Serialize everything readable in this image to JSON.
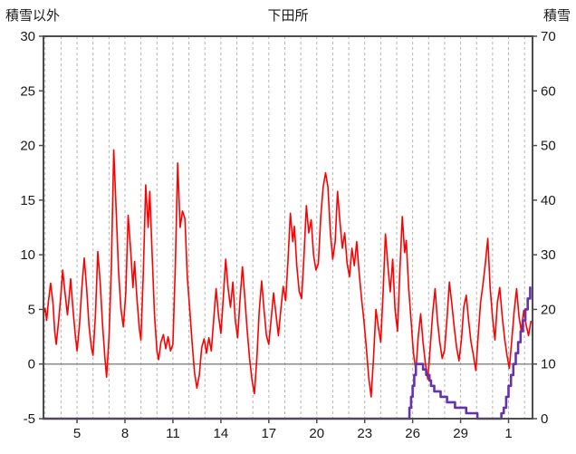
{
  "header": {
    "left_axis_title": "積雪以外",
    "title": "下田所",
    "right_axis_title": "積雪"
  },
  "chart_data": {
    "type": "line",
    "title": "下田所",
    "left_axis_label": "積雪以外",
    "right_axis_label": "積雪",
    "x_domain": [
      2.9,
      33.5
    ],
    "x_ticks": [
      {
        "day": 5,
        "label": "5"
      },
      {
        "day": 8,
        "label": "8"
      },
      {
        "day": 11,
        "label": "11"
      },
      {
        "day": 14,
        "label": "14"
      },
      {
        "day": 17,
        "label": "17"
      },
      {
        "day": 20,
        "label": "20"
      },
      {
        "day": 23,
        "label": "23"
      },
      {
        "day": 26,
        "label": "26"
      },
      {
        "day": 29,
        "label": "29"
      },
      {
        "day": 32,
        "label": "1"
      }
    ],
    "grid": {
      "vertical_step": 1,
      "dashed": true,
      "horizontal": false
    },
    "y_left": {
      "min": -5,
      "max": 30,
      "ticks": [
        30,
        25,
        20,
        15,
        10,
        5,
        0,
        -5
      ]
    },
    "y_right": {
      "min": 0,
      "max": 70,
      "ticks": [
        70,
        60,
        50,
        40,
        30,
        20,
        10,
        0
      ]
    },
    "zero_line_left_value": 0,
    "colors": {
      "temperature": "#ff0000",
      "snow": "#6633aa",
      "grid": "#b3b3b3",
      "frame": "#4d4d4d",
      "zero_line": "#8c8c8c",
      "text": "#1a1a1a"
    },
    "series": [
      {
        "name": "積雪以外",
        "axis": "left",
        "color": "#ff0000",
        "width": 1.6,
        "step": false,
        "points": [
          [
            2.9,
            4.6
          ],
          [
            3.0,
            5.1
          ],
          [
            3.1,
            4.0
          ],
          [
            3.2,
            5.6
          ],
          [
            3.35,
            7.4
          ],
          [
            3.5,
            5.5
          ],
          [
            3.6,
            3.0
          ],
          [
            3.7,
            1.8
          ],
          [
            3.85,
            4.0
          ],
          [
            4.0,
            6.5
          ],
          [
            4.1,
            8.6
          ],
          [
            4.25,
            6.5
          ],
          [
            4.4,
            4.5
          ],
          [
            4.5,
            6.0
          ],
          [
            4.6,
            7.8
          ],
          [
            4.75,
            5.0
          ],
          [
            4.9,
            2.5
          ],
          [
            5.0,
            1.2
          ],
          [
            5.15,
            3.5
          ],
          [
            5.3,
            7.0
          ],
          [
            5.45,
            9.7
          ],
          [
            5.6,
            7.0
          ],
          [
            5.75,
            3.5
          ],
          [
            5.9,
            1.5
          ],
          [
            6.0,
            0.8
          ],
          [
            6.15,
            4.5
          ],
          [
            6.3,
            10.3
          ],
          [
            6.45,
            7.5
          ],
          [
            6.6,
            3.5
          ],
          [
            6.75,
            0.5
          ],
          [
            6.85,
            -1.2
          ],
          [
            7.0,
            2.5
          ],
          [
            7.15,
            9.0
          ],
          [
            7.3,
            19.6
          ],
          [
            7.45,
            14.0
          ],
          [
            7.6,
            8.5
          ],
          [
            7.75,
            5.0
          ],
          [
            7.9,
            3.4
          ],
          [
            8.05,
            6.5
          ],
          [
            8.2,
            13.6
          ],
          [
            8.35,
            10.5
          ],
          [
            8.5,
            7.0
          ],
          [
            8.6,
            9.4
          ],
          [
            8.75,
            6.0
          ],
          [
            8.9,
            3.2
          ],
          [
            9.0,
            2.2
          ],
          [
            9.15,
            8.5
          ],
          [
            9.3,
            16.4
          ],
          [
            9.45,
            12.5
          ],
          [
            9.55,
            15.8
          ],
          [
            9.7,
            10.0
          ],
          [
            9.85,
            4.5
          ],
          [
            10.0,
            1.2
          ],
          [
            10.1,
            0.4
          ],
          [
            10.25,
            2.0
          ],
          [
            10.4,
            2.7
          ],
          [
            10.55,
            1.4
          ],
          [
            10.7,
            2.5
          ],
          [
            10.85,
            1.2
          ],
          [
            11.0,
            1.8
          ],
          [
            11.15,
            9.0
          ],
          [
            11.3,
            18.4
          ],
          [
            11.45,
            12.5
          ],
          [
            11.6,
            14.0
          ],
          [
            11.75,
            13.3
          ],
          [
            11.9,
            8.0
          ],
          [
            12.05,
            5.0
          ],
          [
            12.2,
            2.0
          ],
          [
            12.35,
            -0.8
          ],
          [
            12.5,
            -2.2
          ],
          [
            12.65,
            -1.0
          ],
          [
            12.8,
            1.5
          ],
          [
            12.95,
            2.3
          ],
          [
            13.1,
            1.0
          ],
          [
            13.25,
            2.4
          ],
          [
            13.4,
            1.2
          ],
          [
            13.55,
            4.0
          ],
          [
            13.7,
            6.9
          ],
          [
            13.85,
            4.5
          ],
          [
            14.0,
            2.8
          ],
          [
            14.15,
            6.0
          ],
          [
            14.3,
            9.6
          ],
          [
            14.45,
            7.0
          ],
          [
            14.6,
            5.2
          ],
          [
            14.75,
            7.5
          ],
          [
            14.9,
            4.0
          ],
          [
            15.05,
            2.4
          ],
          [
            15.2,
            6.0
          ],
          [
            15.35,
            8.9
          ],
          [
            15.5,
            6.0
          ],
          [
            15.65,
            3.0
          ],
          [
            15.8,
            0.5
          ],
          [
            15.95,
            -1.5
          ],
          [
            16.1,
            -2.7
          ],
          [
            16.25,
            0.5
          ],
          [
            16.4,
            4.8
          ],
          [
            16.55,
            7.6
          ],
          [
            16.7,
            5.0
          ],
          [
            16.85,
            2.6
          ],
          [
            17.0,
            1.8
          ],
          [
            17.15,
            4.2
          ],
          [
            17.3,
            6.5
          ],
          [
            17.45,
            4.5
          ],
          [
            17.6,
            2.6
          ],
          [
            17.75,
            5.0
          ],
          [
            17.9,
            7.1
          ],
          [
            18.05,
            5.8
          ],
          [
            18.2,
            9.5
          ],
          [
            18.35,
            13.8
          ],
          [
            18.5,
            11.2
          ],
          [
            18.6,
            12.6
          ],
          [
            18.75,
            9.0
          ],
          [
            18.9,
            6.6
          ],
          [
            19.05,
            6.0
          ],
          [
            19.2,
            9.8
          ],
          [
            19.35,
            14.5
          ],
          [
            19.5,
            12.0
          ],
          [
            19.65,
            13.2
          ],
          [
            19.8,
            10.0
          ],
          [
            19.95,
            8.6
          ],
          [
            20.1,
            9.2
          ],
          [
            20.25,
            13.5
          ],
          [
            20.4,
            16.2
          ],
          [
            20.55,
            17.5
          ],
          [
            20.7,
            16.2
          ],
          [
            20.85,
            12.0
          ],
          [
            21.0,
            9.6
          ],
          [
            21.15,
            11.2
          ],
          [
            21.3,
            15.8
          ],
          [
            21.45,
            13.0
          ],
          [
            21.6,
            10.6
          ],
          [
            21.75,
            12.0
          ],
          [
            21.9,
            9.2
          ],
          [
            22.05,
            8.0
          ],
          [
            22.2,
            10.6
          ],
          [
            22.35,
            9.0
          ],
          [
            22.5,
            11.2
          ],
          [
            22.65,
            8.4
          ],
          [
            22.8,
            6.0
          ],
          [
            22.95,
            4.0
          ],
          [
            23.1,
            1.5
          ],
          [
            23.25,
            -1.2
          ],
          [
            23.4,
            -3.0
          ],
          [
            23.55,
            0.5
          ],
          [
            23.7,
            5.0
          ],
          [
            23.85,
            3.4
          ],
          [
            24.0,
            2.0
          ],
          [
            24.15,
            6.5
          ],
          [
            24.3,
            11.9
          ],
          [
            24.45,
            9.0
          ],
          [
            24.6,
            6.6
          ],
          [
            24.75,
            9.6
          ],
          [
            24.9,
            5.0
          ],
          [
            25.05,
            3.0
          ],
          [
            25.2,
            8.5
          ],
          [
            25.35,
            13.5
          ],
          [
            25.5,
            10.2
          ],
          [
            25.6,
            11.3
          ],
          [
            25.75,
            7.0
          ],
          [
            25.9,
            4.0
          ],
          [
            26.05,
            1.0
          ],
          [
            26.2,
            -0.6
          ],
          [
            26.35,
            2.5
          ],
          [
            26.5,
            4.6
          ],
          [
            26.65,
            2.0
          ],
          [
            26.8,
            0.0
          ],
          [
            26.95,
            -1.4
          ],
          [
            27.1,
            1.6
          ],
          [
            27.25,
            4.6
          ],
          [
            27.4,
            6.9
          ],
          [
            27.55,
            4.0
          ],
          [
            27.7,
            2.0
          ],
          [
            27.85,
            0.5
          ],
          [
            28.0,
            1.3
          ],
          [
            28.15,
            4.2
          ],
          [
            28.3,
            7.5
          ],
          [
            28.45,
            5.5
          ],
          [
            28.6,
            3.4
          ],
          [
            28.75,
            1.5
          ],
          [
            28.9,
            0.3
          ],
          [
            29.05,
            2.2
          ],
          [
            29.2,
            5.2
          ],
          [
            29.35,
            6.3
          ],
          [
            29.5,
            4.0
          ],
          [
            29.65,
            2.0
          ],
          [
            29.8,
            0.8
          ],
          [
            29.95,
            -0.6
          ],
          [
            30.1,
            2.6
          ],
          [
            30.25,
            5.6
          ],
          [
            30.4,
            7.3
          ],
          [
            30.55,
            9.2
          ],
          [
            30.7,
            11.5
          ],
          [
            30.85,
            7.0
          ],
          [
            31.0,
            4.2
          ],
          [
            31.15,
            2.2
          ],
          [
            31.3,
            5.6
          ],
          [
            31.45,
            7.0
          ],
          [
            31.6,
            4.4
          ],
          [
            31.75,
            2.4
          ],
          [
            31.9,
            0.8
          ],
          [
            32.05,
            -0.4
          ],
          [
            32.2,
            2.2
          ],
          [
            32.35,
            4.8
          ],
          [
            32.5,
            6.9
          ],
          [
            32.65,
            4.4
          ],
          [
            32.8,
            3.0
          ],
          [
            32.95,
            4.9
          ],
          [
            33.1,
            3.6
          ],
          [
            33.25,
            2.6
          ],
          [
            33.4,
            3.9
          ]
        ]
      },
      {
        "name": "積雪",
        "axis": "right",
        "color": "#6633aa",
        "width": 2.6,
        "step": true,
        "points": [
          [
            2.9,
            0
          ],
          [
            25.7,
            0
          ],
          [
            25.8,
            2
          ],
          [
            25.9,
            4
          ],
          [
            26.0,
            6
          ],
          [
            26.1,
            8
          ],
          [
            26.2,
            10
          ],
          [
            26.5,
            10
          ],
          [
            26.65,
            9
          ],
          [
            26.85,
            8
          ],
          [
            27.05,
            7
          ],
          [
            27.15,
            6
          ],
          [
            27.35,
            5
          ],
          [
            27.65,
            5
          ],
          [
            27.75,
            4
          ],
          [
            28.05,
            4
          ],
          [
            28.15,
            3
          ],
          [
            28.55,
            3
          ],
          [
            28.65,
            2
          ],
          [
            29.25,
            2
          ],
          [
            29.35,
            1
          ],
          [
            29.95,
            1
          ],
          [
            30.05,
            0
          ],
          [
            31.45,
            0
          ],
          [
            31.55,
            1
          ],
          [
            31.7,
            2
          ],
          [
            31.85,
            4
          ],
          [
            32.0,
            6
          ],
          [
            32.15,
            8
          ],
          [
            32.3,
            10
          ],
          [
            32.45,
            12
          ],
          [
            32.6,
            14
          ],
          [
            32.75,
            16
          ],
          [
            32.9,
            18
          ],
          [
            33.05,
            20
          ],
          [
            33.2,
            22
          ],
          [
            33.35,
            24
          ]
        ]
      }
    ]
  }
}
